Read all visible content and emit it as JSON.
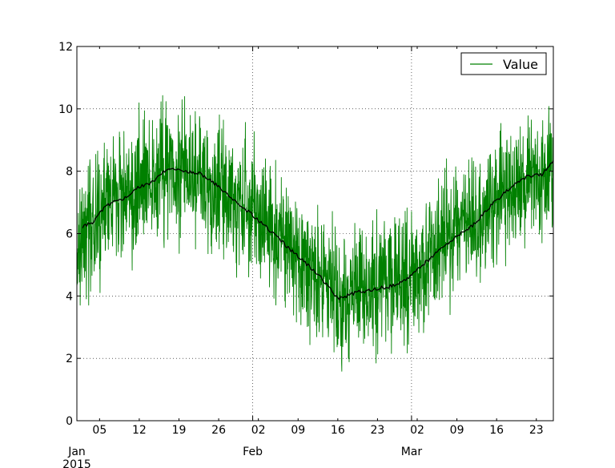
{
  "chart_data": {
    "type": "line",
    "title": "",
    "xlabel": "",
    "ylabel": "",
    "x_range": [
      "2015-01-01",
      "2015-03-26"
    ],
    "ylim": [
      0,
      12
    ],
    "y_ticks": [
      0,
      2,
      4,
      6,
      8,
      10,
      12
    ],
    "y_tick_labels": [
      "0",
      "2",
      "4",
      "6",
      "8",
      "10",
      "12"
    ],
    "x_minor_ticks": [
      {
        "date": "2015-01-05",
        "label": "05"
      },
      {
        "date": "2015-01-12",
        "label": "12"
      },
      {
        "date": "2015-01-19",
        "label": "19"
      },
      {
        "date": "2015-01-26",
        "label": "26"
      },
      {
        "date": "2015-02-02",
        "label": "02"
      },
      {
        "date": "2015-02-09",
        "label": "09"
      },
      {
        "date": "2015-02-16",
        "label": "16"
      },
      {
        "date": "2015-02-23",
        "label": "23"
      },
      {
        "date": "2015-03-02",
        "label": "02"
      },
      {
        "date": "2015-03-09",
        "label": "09"
      },
      {
        "date": "2015-03-16",
        "label": "16"
      },
      {
        "date": "2015-03-23",
        "label": "23"
      }
    ],
    "x_major_ticks": [
      {
        "date": "2015-01-01",
        "label": "Jan",
        "sublabel": "2015"
      },
      {
        "date": "2015-02-01",
        "label": "Feb",
        "sublabel": ""
      },
      {
        "date": "2015-03-01",
        "label": "Mar",
        "sublabel": ""
      }
    ],
    "grid": true,
    "legend_position": "top-right",
    "series": [
      {
        "name": "Value",
        "color": "#008000",
        "style": "noisy",
        "noise_sd": 1.0,
        "center_points": [
          {
            "x": "2015-01-01",
            "y": 5.5
          },
          {
            "x": "2015-01-04",
            "y": 6.3
          },
          {
            "x": "2015-01-08",
            "y": 7.0
          },
          {
            "x": "2015-01-13",
            "y": 7.6
          },
          {
            "x": "2015-01-17",
            "y": 8.0
          },
          {
            "x": "2015-01-22",
            "y": 7.9
          },
          {
            "x": "2015-01-27",
            "y": 7.3
          },
          {
            "x": "2015-02-01",
            "y": 6.7
          },
          {
            "x": "2015-02-05",
            "y": 6.0
          },
          {
            "x": "2015-02-10",
            "y": 5.1
          },
          {
            "x": "2015-02-14",
            "y": 4.4
          },
          {
            "x": "2015-02-16",
            "y": 3.9
          },
          {
            "x": "2015-02-20",
            "y": 4.1
          },
          {
            "x": "2015-02-25",
            "y": 4.3
          },
          {
            "x": "2015-03-01",
            "y": 4.6
          },
          {
            "x": "2015-03-05",
            "y": 5.4
          },
          {
            "x": "2015-03-10",
            "y": 6.1
          },
          {
            "x": "2015-03-14",
            "y": 6.6
          },
          {
            "x": "2015-03-18",
            "y": 7.4
          },
          {
            "x": "2015-03-22",
            "y": 7.8
          },
          {
            "x": "2015-03-26",
            "y": 8.3
          }
        ]
      },
      {
        "name": "",
        "color": "#000000",
        "style": "smooth",
        "points": [
          {
            "x": "2015-01-02",
            "y": 6.2
          },
          {
            "x": "2015-01-04",
            "y": 6.4
          },
          {
            "x": "2015-01-06",
            "y": 6.9
          },
          {
            "x": "2015-01-09",
            "y": 7.1
          },
          {
            "x": "2015-01-12",
            "y": 7.5
          },
          {
            "x": "2015-01-14",
            "y": 7.6
          },
          {
            "x": "2015-01-17",
            "y": 8.1
          },
          {
            "x": "2015-01-20",
            "y": 8.0
          },
          {
            "x": "2015-01-23",
            "y": 7.9
          },
          {
            "x": "2015-01-26",
            "y": 7.5
          },
          {
            "x": "2015-01-29",
            "y": 7.0
          },
          {
            "x": "2015-02-01",
            "y": 6.6
          },
          {
            "x": "2015-02-04",
            "y": 6.1
          },
          {
            "x": "2015-02-07",
            "y": 5.6
          },
          {
            "x": "2015-02-10",
            "y": 5.1
          },
          {
            "x": "2015-02-13",
            "y": 4.6
          },
          {
            "x": "2015-02-16",
            "y": 3.9
          },
          {
            "x": "2015-02-19",
            "y": 4.1
          },
          {
            "x": "2015-02-22",
            "y": 4.2
          },
          {
            "x": "2015-02-25",
            "y": 4.3
          },
          {
            "x": "2015-02-28",
            "y": 4.5
          },
          {
            "x": "2015-03-03",
            "y": 5.0
          },
          {
            "x": "2015-03-06",
            "y": 5.5
          },
          {
            "x": "2015-03-09",
            "y": 5.9
          },
          {
            "x": "2015-03-12",
            "y": 6.3
          },
          {
            "x": "2015-03-15",
            "y": 6.9
          },
          {
            "x": "2015-03-18",
            "y": 7.4
          },
          {
            "x": "2015-03-21",
            "y": 7.8
          },
          {
            "x": "2015-03-24",
            "y": 7.9
          },
          {
            "x": "2015-03-26",
            "y": 8.3
          }
        ]
      }
    ]
  }
}
